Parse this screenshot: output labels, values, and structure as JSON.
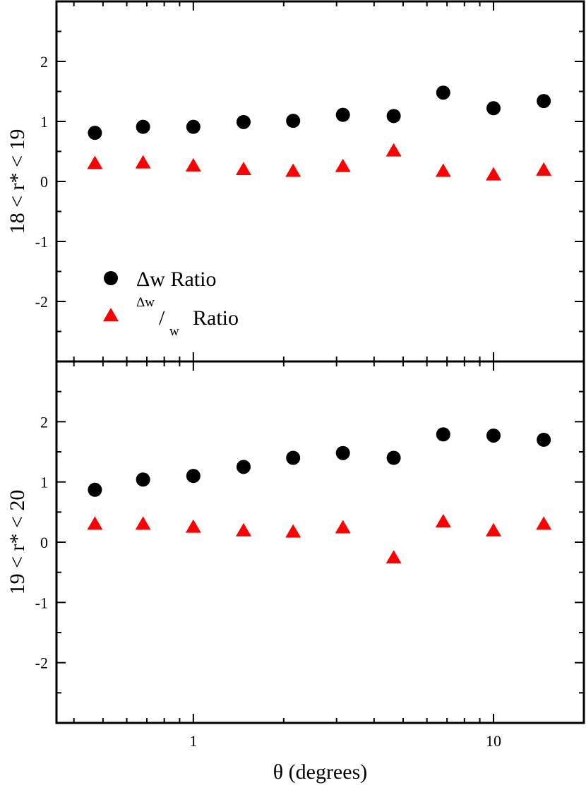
{
  "chart_data": [
    {
      "type": "scatter",
      "panel": "top",
      "ylabel": "18 < r* < 19",
      "xscale": "log",
      "xlim": [
        0.35,
        20
      ],
      "ylim": [
        -3,
        3
      ],
      "yticks": [
        -2,
        -1,
        0,
        1,
        2
      ],
      "x": [
        0.47,
        0.68,
        1.0,
        1.47,
        2.15,
        3.15,
        4.65,
        6.8,
        10.0,
        14.7
      ],
      "series": [
        {
          "name": "Δw Ratio",
          "marker": "circle",
          "color": "#000000",
          "values": [
            0.81,
            0.91,
            0.91,
            0.99,
            1.01,
            1.11,
            1.09,
            1.48,
            1.22,
            1.34
          ]
        },
        {
          "name": "Δw/w Ratio",
          "marker": "triangle",
          "color": "#ff0000",
          "values": [
            0.3,
            0.31,
            0.26,
            0.2,
            0.17,
            0.25,
            0.51,
            0.17,
            0.11,
            0.19
          ]
        }
      ],
      "legend": "lower-left"
    },
    {
      "type": "scatter",
      "panel": "bottom",
      "ylabel": "19 < r* < 20",
      "xlabel": "θ (degrees)",
      "xscale": "log",
      "xlim": [
        0.35,
        20
      ],
      "ylim": [
        -3,
        3
      ],
      "yticks": [
        -2,
        -1,
        0,
        1,
        2
      ],
      "xticklabels": [
        "1",
        "10"
      ],
      "x": [
        0.47,
        0.68,
        1.0,
        1.47,
        2.15,
        3.15,
        4.65,
        6.8,
        10.0,
        14.7
      ],
      "series": [
        {
          "name": "Δw Ratio",
          "marker": "circle",
          "color": "#000000",
          "values": [
            0.87,
            1.04,
            1.1,
            1.25,
            1.4,
            1.48,
            1.4,
            1.79,
            1.77,
            1.7
          ]
        },
        {
          "name": "Δw/w Ratio",
          "marker": "triangle",
          "color": "#ff0000",
          "values": [
            0.3,
            0.3,
            0.25,
            0.19,
            0.17,
            0.24,
            -0.26,
            0.34,
            0.19,
            0.3
          ]
        }
      ]
    }
  ],
  "legend": {
    "item1": {
      "text": "Δw Ratio"
    },
    "item2": {
      "num": "Δw",
      "den": "w",
      "text": "Ratio"
    }
  }
}
